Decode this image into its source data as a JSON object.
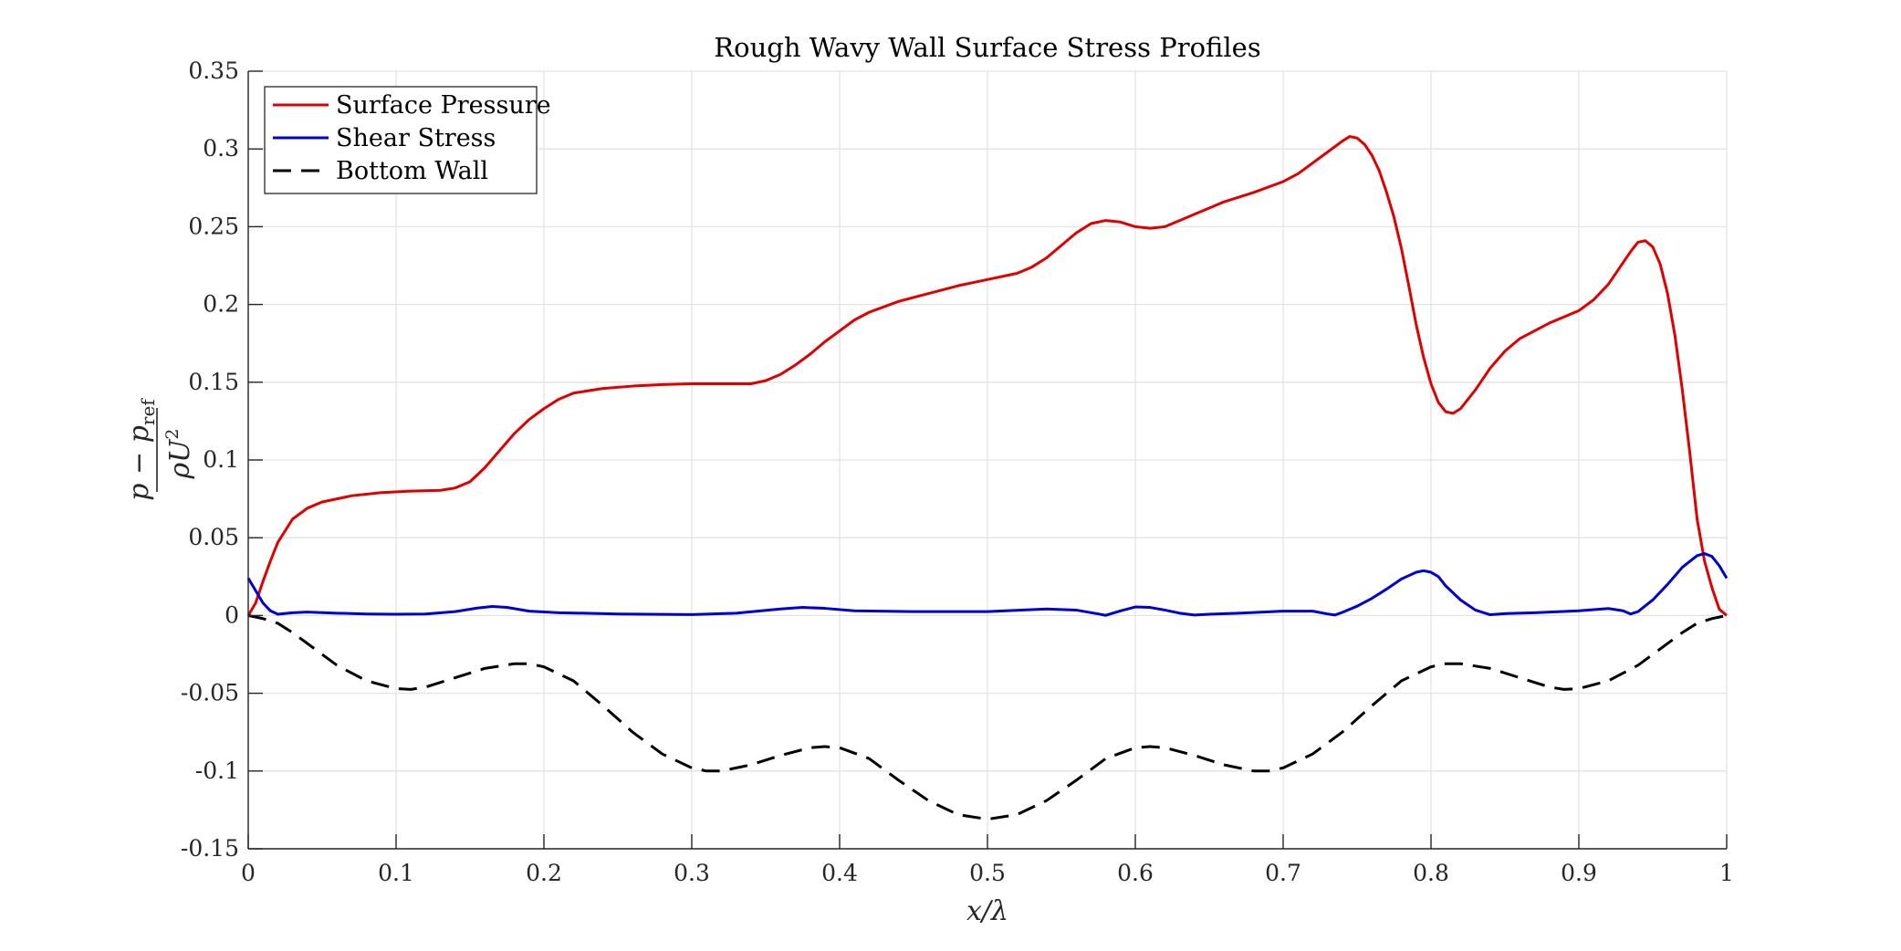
{
  "chart_data": {
    "type": "line",
    "title": "Rough Wavy Wall Surface Stress Profiles",
    "xlabel": "x/λ",
    "ylabel": {
      "numerator": "p − p",
      "numerator_sub": "ref",
      "denominator": "ρU",
      "denominator_sup": "2"
    },
    "xlim": [
      0,
      1
    ],
    "ylim": [
      -0.15,
      0.35
    ],
    "xticks": [
      0,
      0.1,
      0.2,
      0.3,
      0.4,
      0.5,
      0.6,
      0.7,
      0.8,
      0.9,
      1
    ],
    "xtick_labels": [
      "0",
      "0.1",
      "0.2",
      "0.3",
      "0.4",
      "0.5",
      "0.6",
      "0.7",
      "0.8",
      "0.9",
      "1"
    ],
    "yticks": [
      -0.15,
      -0.1,
      -0.05,
      0,
      0.05,
      0.1,
      0.15,
      0.2,
      0.25,
      0.3,
      0.35
    ],
    "ytick_labels": [
      "-0.15",
      "-0.1",
      "-0.05",
      "0",
      "0.05",
      "0.1",
      "0.15",
      "0.2",
      "0.25",
      "0.3",
      "0.35"
    ],
    "grid": true,
    "legend_position": "top-left",
    "series": [
      {
        "name": "Surface Pressure",
        "color": "#e00000",
        "dash": "solid",
        "points": [
          [
            0,
            0
          ],
          [
            0.005,
            0.008
          ],
          [
            0.01,
            0.022
          ],
          [
            0.015,
            0.035
          ],
          [
            0.02,
            0.047
          ],
          [
            0.03,
            0.062
          ],
          [
            0.04,
            0.069
          ],
          [
            0.05,
            0.073
          ],
          [
            0.07,
            0.077
          ],
          [
            0.09,
            0.079
          ],
          [
            0.11,
            0.08
          ],
          [
            0.13,
            0.0805
          ],
          [
            0.14,
            0.082
          ],
          [
            0.15,
            0.086
          ],
          [
            0.16,
            0.095
          ],
          [
            0.17,
            0.106
          ],
          [
            0.18,
            0.117
          ],
          [
            0.19,
            0.126
          ],
          [
            0.2,
            0.133
          ],
          [
            0.21,
            0.139
          ],
          [
            0.22,
            0.143
          ],
          [
            0.24,
            0.146
          ],
          [
            0.26,
            0.1475
          ],
          [
            0.28,
            0.1485
          ],
          [
            0.3,
            0.149
          ],
          [
            0.32,
            0.149
          ],
          [
            0.34,
            0.149
          ],
          [
            0.35,
            0.151
          ],
          [
            0.36,
            0.155
          ],
          [
            0.37,
            0.161
          ],
          [
            0.38,
            0.168
          ],
          [
            0.39,
            0.176
          ],
          [
            0.4,
            0.183
          ],
          [
            0.41,
            0.19
          ],
          [
            0.42,
            0.195
          ],
          [
            0.44,
            0.202
          ],
          [
            0.46,
            0.207
          ],
          [
            0.48,
            0.212
          ],
          [
            0.5,
            0.216
          ],
          [
            0.52,
            0.22
          ],
          [
            0.53,
            0.224
          ],
          [
            0.54,
            0.23
          ],
          [
            0.55,
            0.238
          ],
          [
            0.56,
            0.246
          ],
          [
            0.57,
            0.252
          ],
          [
            0.58,
            0.254
          ],
          [
            0.59,
            0.253
          ],
          [
            0.6,
            0.25
          ],
          [
            0.61,
            0.249
          ],
          [
            0.62,
            0.25
          ],
          [
            0.63,
            0.254
          ],
          [
            0.64,
            0.258
          ],
          [
            0.65,
            0.262
          ],
          [
            0.66,
            0.266
          ],
          [
            0.68,
            0.272
          ],
          [
            0.7,
            0.279
          ],
          [
            0.71,
            0.284
          ],
          [
            0.72,
            0.291
          ],
          [
            0.73,
            0.298
          ],
          [
            0.74,
            0.305
          ],
          [
            0.745,
            0.308
          ],
          [
            0.75,
            0.307
          ],
          [
            0.755,
            0.303
          ],
          [
            0.76,
            0.296
          ],
          [
            0.765,
            0.286
          ],
          [
            0.77,
            0.272
          ],
          [
            0.775,
            0.256
          ],
          [
            0.78,
            0.236
          ],
          [
            0.785,
            0.212
          ],
          [
            0.79,
            0.187
          ],
          [
            0.795,
            0.166
          ],
          [
            0.8,
            0.149
          ],
          [
            0.805,
            0.137
          ],
          [
            0.81,
            0.131
          ],
          [
            0.815,
            0.13
          ],
          [
            0.82,
            0.133
          ],
          [
            0.83,
            0.145
          ],
          [
            0.84,
            0.159
          ],
          [
            0.85,
            0.17
          ],
          [
            0.86,
            0.178
          ],
          [
            0.87,
            0.183
          ],
          [
            0.88,
            0.188
          ],
          [
            0.89,
            0.192
          ],
          [
            0.9,
            0.196
          ],
          [
            0.91,
            0.203
          ],
          [
            0.92,
            0.213
          ],
          [
            0.93,
            0.227
          ],
          [
            0.935,
            0.234
          ],
          [
            0.94,
            0.24
          ],
          [
            0.945,
            0.241
          ],
          [
            0.95,
            0.237
          ],
          [
            0.955,
            0.226
          ],
          [
            0.96,
            0.207
          ],
          [
            0.965,
            0.18
          ],
          [
            0.97,
            0.145
          ],
          [
            0.975,
            0.105
          ],
          [
            0.98,
            0.062
          ],
          [
            0.985,
            0.035
          ],
          [
            0.99,
            0.018
          ],
          [
            0.995,
            0.004
          ],
          [
            1,
            0
          ]
        ]
      },
      {
        "name": "Shear Stress",
        "color": "#0000d0",
        "dash": "solid",
        "points": [
          [
            0,
            0.024
          ],
          [
            0.005,
            0.016
          ],
          [
            0.01,
            0.008
          ],
          [
            0.015,
            0.003
          ],
          [
            0.02,
            0.0008
          ],
          [
            0.03,
            0.0018
          ],
          [
            0.04,
            0.0022
          ],
          [
            0.06,
            0.0015
          ],
          [
            0.08,
            0.001
          ],
          [
            0.1,
            0.0008
          ],
          [
            0.12,
            0.001
          ],
          [
            0.14,
            0.0025
          ],
          [
            0.155,
            0.0048
          ],
          [
            0.165,
            0.0058
          ],
          [
            0.175,
            0.0052
          ],
          [
            0.19,
            0.0028
          ],
          [
            0.21,
            0.0018
          ],
          [
            0.25,
            0.001
          ],
          [
            0.3,
            0.0006
          ],
          [
            0.33,
            0.0015
          ],
          [
            0.36,
            0.0042
          ],
          [
            0.375,
            0.0052
          ],
          [
            0.39,
            0.0046
          ],
          [
            0.41,
            0.003
          ],
          [
            0.45,
            0.0025
          ],
          [
            0.5,
            0.0025
          ],
          [
            0.54,
            0.0042
          ],
          [
            0.56,
            0.0035
          ],
          [
            0.575,
            0.001
          ],
          [
            0.58,
            0.0001
          ],
          [
            0.59,
            0.003
          ],
          [
            0.6,
            0.0055
          ],
          [
            0.61,
            0.0052
          ],
          [
            0.62,
            0.0035
          ],
          [
            0.63,
            0.0015
          ],
          [
            0.64,
            0.0003
          ],
          [
            0.65,
            0.0008
          ],
          [
            0.67,
            0.0015
          ],
          [
            0.7,
            0.0028
          ],
          [
            0.72,
            0.0028
          ],
          [
            0.73,
            0.001
          ],
          [
            0.735,
            0.0003
          ],
          [
            0.74,
            0.002
          ],
          [
            0.75,
            0.006
          ],
          [
            0.76,
            0.011
          ],
          [
            0.77,
            0.017
          ],
          [
            0.78,
            0.0235
          ],
          [
            0.79,
            0.0278
          ],
          [
            0.795,
            0.0288
          ],
          [
            0.8,
            0.0278
          ],
          [
            0.805,
            0.025
          ],
          [
            0.81,
            0.019
          ],
          [
            0.82,
            0.01
          ],
          [
            0.83,
            0.0035
          ],
          [
            0.84,
            0.0005
          ],
          [
            0.85,
            0.0012
          ],
          [
            0.87,
            0.0018
          ],
          [
            0.9,
            0.003
          ],
          [
            0.92,
            0.0045
          ],
          [
            0.93,
            0.003
          ],
          [
            0.935,
            0.001
          ],
          [
            0.94,
            0.0025
          ],
          [
            0.95,
            0.01
          ],
          [
            0.96,
            0.02
          ],
          [
            0.97,
            0.031
          ],
          [
            0.98,
            0.0385
          ],
          [
            0.985,
            0.0398
          ],
          [
            0.99,
            0.038
          ],
          [
            0.995,
            0.032
          ],
          [
            1,
            0.024
          ]
        ]
      },
      {
        "name": "Bottom Wall",
        "color": "#000000",
        "dash": "dashed",
        "points": [
          [
            0,
            0
          ],
          [
            0.01,
            -0.002
          ],
          [
            0.02,
            -0.005
          ],
          [
            0.03,
            -0.011
          ],
          [
            0.04,
            -0.018
          ],
          [
            0.06,
            -0.032
          ],
          [
            0.08,
            -0.042
          ],
          [
            0.1,
            -0.047
          ],
          [
            0.11,
            -0.0475
          ],
          [
            0.12,
            -0.046
          ],
          [
            0.14,
            -0.04
          ],
          [
            0.16,
            -0.034
          ],
          [
            0.18,
            -0.031
          ],
          [
            0.19,
            -0.031
          ],
          [
            0.2,
            -0.033
          ],
          [
            0.22,
            -0.042
          ],
          [
            0.24,
            -0.058
          ],
          [
            0.26,
            -0.075
          ],
          [
            0.28,
            -0.089
          ],
          [
            0.3,
            -0.098
          ],
          [
            0.31,
            -0.1
          ],
          [
            0.32,
            -0.1
          ],
          [
            0.34,
            -0.096
          ],
          [
            0.36,
            -0.09
          ],
          [
            0.38,
            -0.085
          ],
          [
            0.39,
            -0.0843
          ],
          [
            0.4,
            -0.085
          ],
          [
            0.42,
            -0.092
          ],
          [
            0.44,
            -0.106
          ],
          [
            0.46,
            -0.119
          ],
          [
            0.48,
            -0.128
          ],
          [
            0.5,
            -0.131
          ],
          [
            0.52,
            -0.128
          ],
          [
            0.54,
            -0.119
          ],
          [
            0.56,
            -0.106
          ],
          [
            0.58,
            -0.092
          ],
          [
            0.6,
            -0.085
          ],
          [
            0.61,
            -0.0843
          ],
          [
            0.62,
            -0.085
          ],
          [
            0.64,
            -0.09
          ],
          [
            0.66,
            -0.096
          ],
          [
            0.68,
            -0.1
          ],
          [
            0.69,
            -0.1
          ],
          [
            0.7,
            -0.098
          ],
          [
            0.72,
            -0.089
          ],
          [
            0.74,
            -0.075
          ],
          [
            0.76,
            -0.058
          ],
          [
            0.78,
            -0.042
          ],
          [
            0.8,
            -0.033
          ],
          [
            0.81,
            -0.031
          ],
          [
            0.82,
            -0.031
          ],
          [
            0.84,
            -0.034
          ],
          [
            0.86,
            -0.04
          ],
          [
            0.88,
            -0.046
          ],
          [
            0.89,
            -0.0475
          ],
          [
            0.9,
            -0.047
          ],
          [
            0.92,
            -0.042
          ],
          [
            0.94,
            -0.032
          ],
          [
            0.96,
            -0.018
          ],
          [
            0.97,
            -0.011
          ],
          [
            0.98,
            -0.005
          ],
          [
            0.99,
            -0.002
          ],
          [
            1,
            0
          ]
        ]
      }
    ]
  }
}
